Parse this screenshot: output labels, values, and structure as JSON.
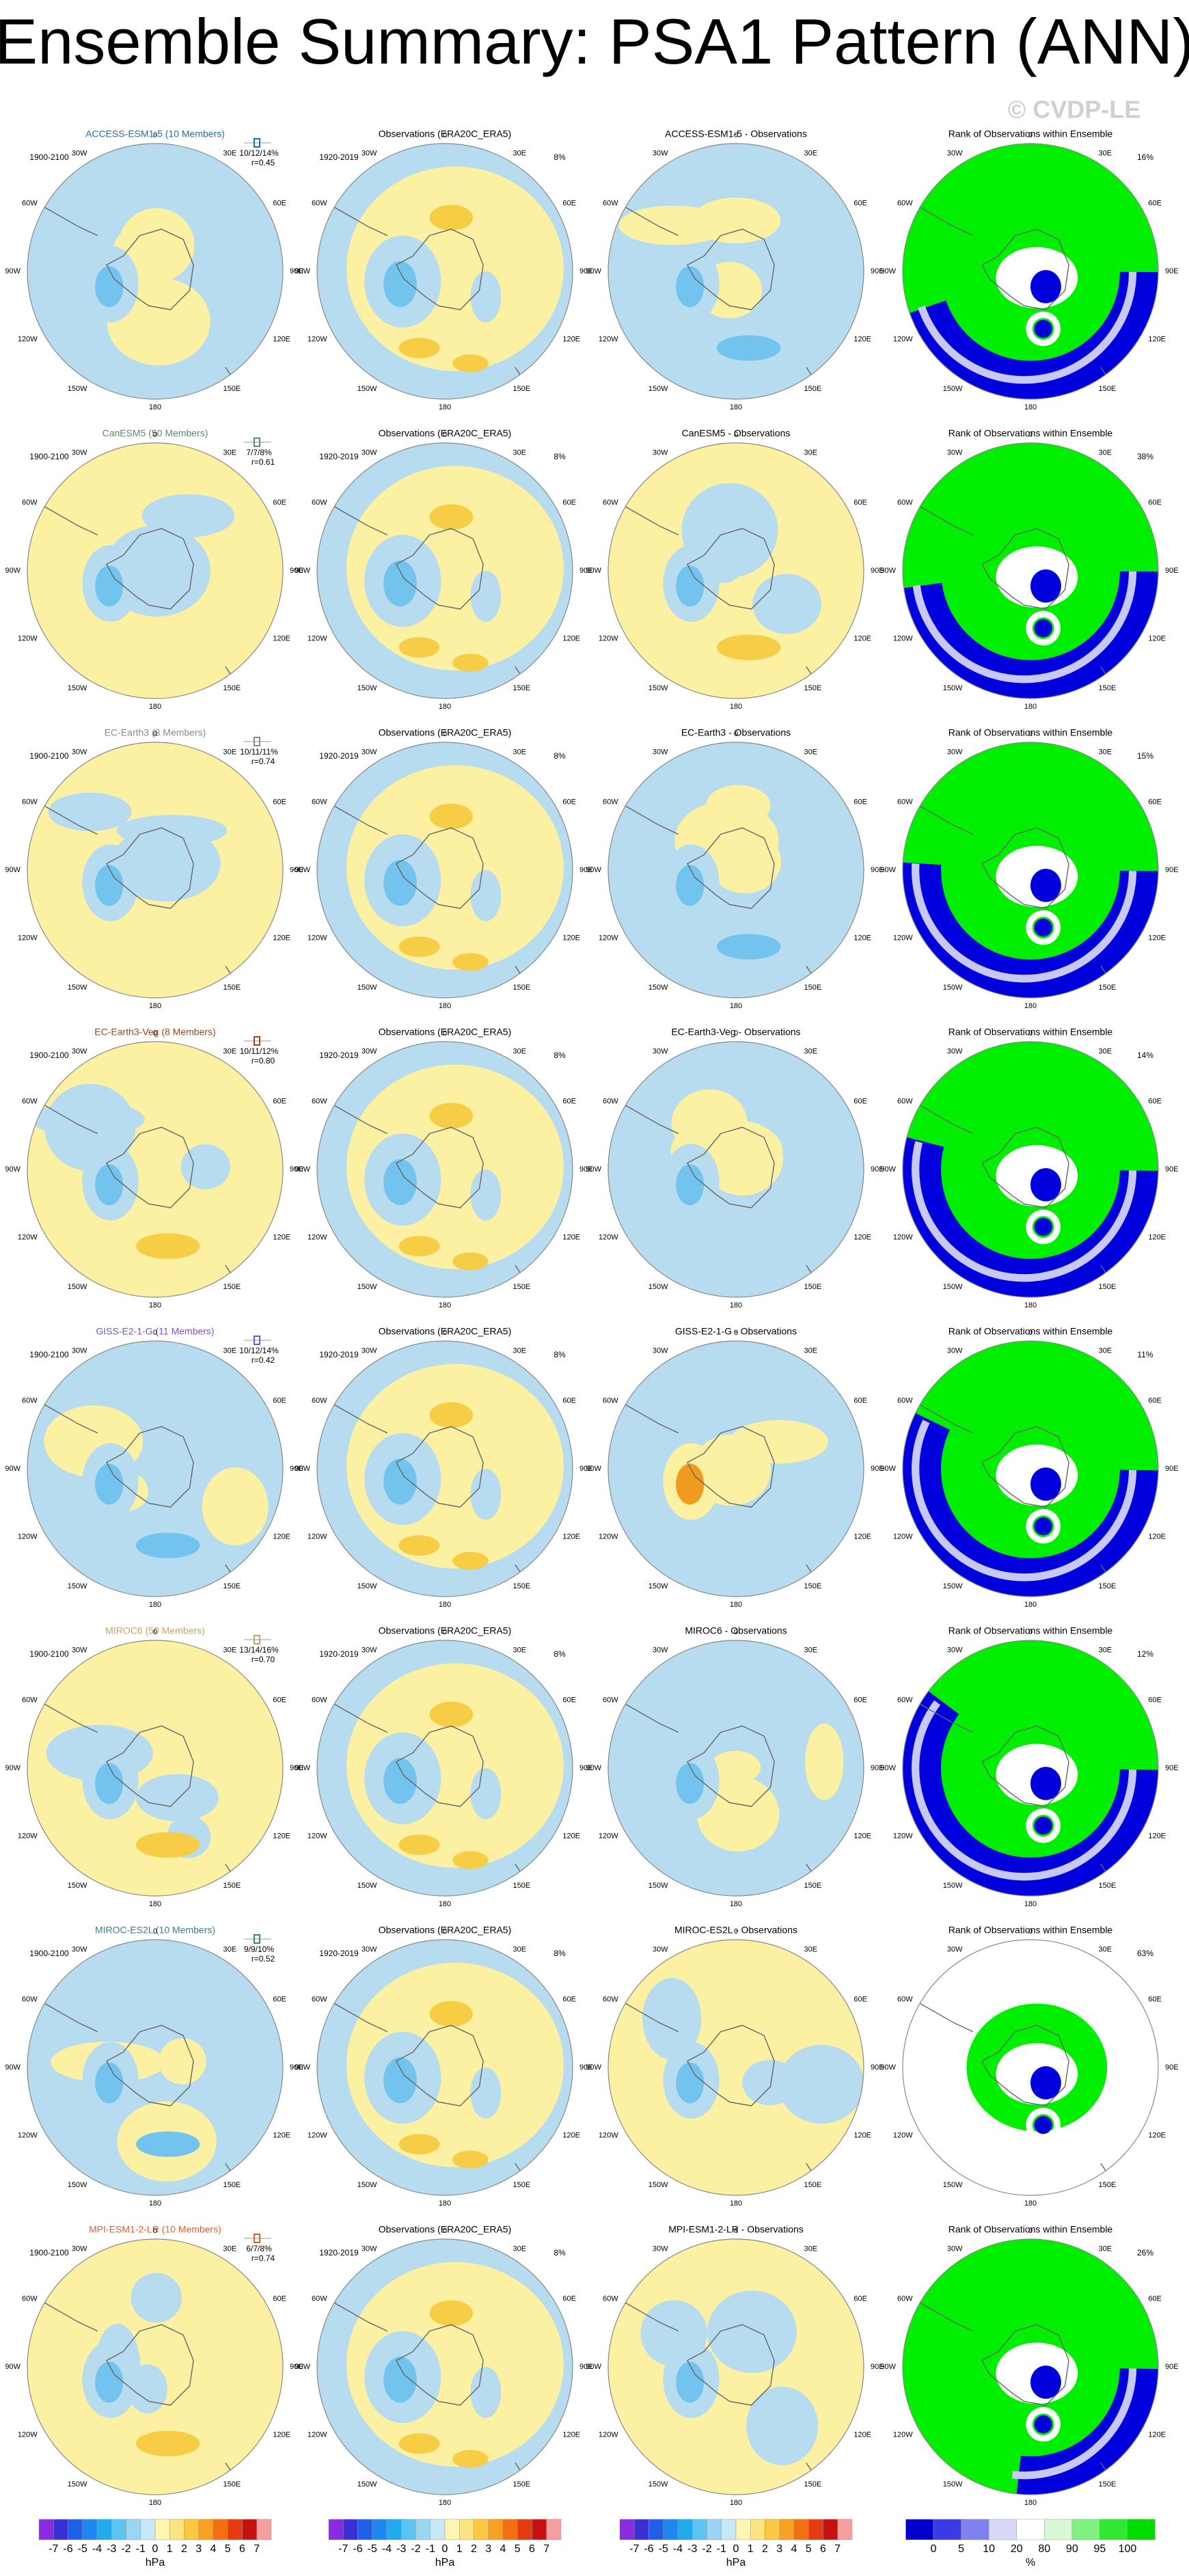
{
  "title": "Ensemble Summary: PSA1 Pattern (ANN)",
  "watermark": "© CVDP-LE",
  "longitude_labels": [
    "0",
    "30E",
    "60E",
    "90E",
    "120E",
    "150E",
    "180",
    "150W",
    "120W",
    "90W",
    "60W",
    "30W"
  ],
  "rows": [
    {
      "model": "ACCESS-ESM1-5 (10 Members)",
      "color": "#1f6fa8",
      "period": "1900-2100",
      "pattern_stats": "10/12/14%",
      "correlation": "r=0.45",
      "obs_title": "Observations (ERA20C_ERA5)",
      "obs_period": "1920-2019",
      "obs_stat": "8%",
      "difference_title": "ACCESS-ESM1-5 - Observations",
      "rank_title": "Rank of Observations within Ensemble",
      "rank_percent": "16%"
    },
    {
      "model": "CanESM5 (50 Members)",
      "color": "#5d8a6a",
      "period": "1900-2100",
      "pattern_stats": "7/7/8%",
      "correlation": "r=0.61",
      "obs_title": "Observations (ERA20C_ERA5)",
      "obs_period": "1920-2019",
      "obs_stat": "8%",
      "difference_title": "CanESM5 - Observations",
      "rank_title": "Rank of Observations within Ensemble",
      "rank_percent": "38%"
    },
    {
      "model": "EC-Earth3 (8 Members)",
      "color": "#8a8a8a",
      "period": "1900-2100",
      "pattern_stats": "10/11/11%",
      "correlation": "r=0.74",
      "obs_title": "Observations (ERA20C_ERA5)",
      "obs_period": "1920-2019",
      "obs_stat": "8%",
      "difference_title": "EC-Earth3 - Observations",
      "rank_title": "Rank of Observations within Ensemble",
      "rank_percent": "15%"
    },
    {
      "model": "EC-Earth3-Veg (8 Members)",
      "color": "#a0461c",
      "period": "1900-2100",
      "pattern_stats": "10/11/12%",
      "correlation": "r=0.80",
      "obs_title": "Observations (ERA20C_ERA5)",
      "obs_period": "1920-2019",
      "obs_stat": "8%",
      "difference_title": "EC-Earth3-Veg - Observations",
      "rank_title": "Rank of Observations within Ensemble",
      "rank_percent": "14%"
    },
    {
      "model": "GISS-E2-1-G (11 Members)",
      "color": "#7a55c8",
      "period": "1900-2100",
      "pattern_stats": "10/12/14%",
      "correlation": "r=0.42",
      "obs_title": "Observations (ERA20C_ERA5)",
      "obs_period": "1920-2019",
      "obs_stat": "8%",
      "difference_title": "GISS-E2-1-G - Observations",
      "rank_title": "Rank of Observations within Ensemble",
      "rank_percent": "11%"
    },
    {
      "model": "MIROC6 (50 Members)",
      "color": "#c8a070",
      "period": "1900-2100",
      "pattern_stats": "13/14/16%",
      "correlation": "r=0.70",
      "obs_title": "Observations (ERA20C_ERA5)",
      "obs_period": "1920-2019",
      "obs_stat": "8%",
      "difference_title": "MIROC6 - Observations",
      "rank_title": "Rank of Observations within Ensemble",
      "rank_percent": "12%"
    },
    {
      "model": "MIROC-ES2L (10 Members)",
      "color": "#3a7f8c",
      "period": "1900-2100",
      "pattern_stats": "9/9/10%",
      "correlation": "r=0.52",
      "obs_title": "Observations (ERA20C_ERA5)",
      "obs_period": "1920-2019",
      "obs_stat": "8%",
      "difference_title": "MIROC-ES2L - Observations",
      "rank_title": "Rank of Observations within Ensemble",
      "rank_percent": "63%"
    },
    {
      "model": "MPI-ESM1-2-LR (10 Members)",
      "color": "#e0602a",
      "period": "1900-2100",
      "pattern_stats": "6/7/8%",
      "correlation": "r=0.74",
      "obs_title": "Observations (ERA20C_ERA5)",
      "obs_period": "1920-2019",
      "obs_stat": "8%",
      "difference_title": "MPI-ESM1-2-LR - Observations",
      "rank_title": "Rank of Observations within Ensemble",
      "rank_percent": "26%"
    }
  ],
  "colorbars": [
    {
      "labels": [
        -7,
        -6,
        -5,
        -4,
        -3,
        -2,
        -1,
        0,
        1,
        2,
        3,
        4,
        5,
        6,
        7
      ],
      "units": "hPa",
      "colors": [
        "#8a2be2",
        "#3a2fd6",
        "#2060e8",
        "#1e88f0",
        "#22aaee",
        "#5cc4f2",
        "#9ad6f4",
        "#c7e8f6",
        "#fdf5b0",
        "#fde480",
        "#fdc840",
        "#f9a020",
        "#f37010",
        "#e63a10",
        "#c81010",
        "#f5a0a0"
      ]
    },
    {
      "labels": [
        -7,
        -6,
        -5,
        -4,
        -3,
        -2,
        -1,
        0,
        1,
        2,
        3,
        4,
        5,
        6,
        7
      ],
      "units": "hPa",
      "colors": [
        "#8a2be2",
        "#3a2fd6",
        "#2060e8",
        "#1e88f0",
        "#22aaee",
        "#5cc4f2",
        "#9ad6f4",
        "#c7e8f6",
        "#fdf5b0",
        "#fde480",
        "#fdc840",
        "#f9a020",
        "#f37010",
        "#e63a10",
        "#c81010",
        "#f5a0a0"
      ]
    },
    {
      "labels": [
        -7,
        -6,
        -5,
        -4,
        -3,
        -2,
        -1,
        0,
        1,
        2,
        3,
        4,
        5,
        6,
        7
      ],
      "units": "hPa",
      "colors": [
        "#8a2be2",
        "#3a2fd6",
        "#2060e8",
        "#1e88f0",
        "#22aaee",
        "#5cc4f2",
        "#9ad6f4",
        "#c7e8f6",
        "#fdf5b0",
        "#fde480",
        "#fdc840",
        "#f9a020",
        "#f37010",
        "#e63a10",
        "#c81010",
        "#f5a0a0"
      ]
    },
    {
      "labels": [
        0,
        5,
        10,
        20,
        80,
        90,
        95,
        100
      ],
      "units": "%",
      "colors": [
        "#0000cc",
        "#3a3ae6",
        "#8080f0",
        "#d8d8f8",
        "#ffffff",
        "#d8f8d8",
        "#80f080",
        "#30e830",
        "#00dd00"
      ]
    }
  ]
}
